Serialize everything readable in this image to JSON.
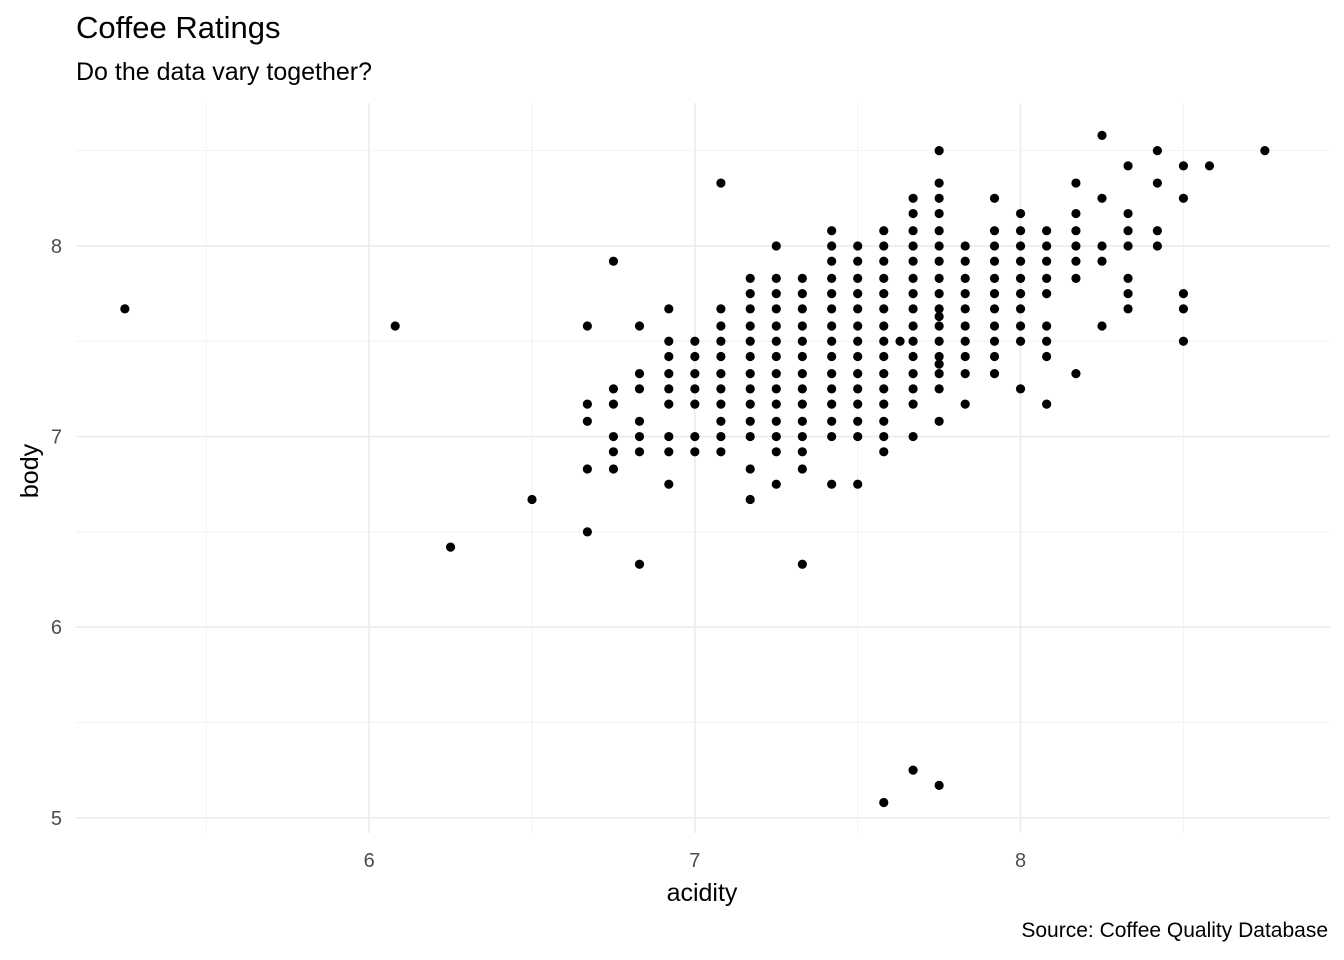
{
  "chart_data": {
    "type": "scatter",
    "title": "Coffee Ratings",
    "subtitle": "Do the data vary together?",
    "caption": "Source: Coffee Quality Database",
    "xlabel": "acidity",
    "ylabel": "body",
    "xlim": [
      5.1,
      8.95
    ],
    "ylim": [
      4.92,
      8.75
    ],
    "x_ticks": [
      6,
      7,
      8
    ],
    "y_ticks": [
      5,
      6,
      7,
      8
    ],
    "x_minor": [
      5.5,
      6.5,
      7.5,
      8.5
    ],
    "y_minor": [
      5.5,
      6.5,
      7.5,
      8.5
    ],
    "grid": true,
    "point_color": "#000000",
    "background": "#ffffff",
    "points": [
      [
        5.25,
        7.67
      ],
      [
        6.08,
        7.58
      ],
      [
        6.25,
        6.42
      ],
      [
        6.5,
        6.67
      ],
      [
        6.67,
        7.58
      ],
      [
        6.67,
        7.17
      ],
      [
        6.67,
        7.08
      ],
      [
        6.67,
        6.83
      ],
      [
        6.67,
        6.5
      ],
      [
        6.75,
        7.92
      ],
      [
        6.75,
        7.25
      ],
      [
        6.75,
        7.17
      ],
      [
        6.75,
        7.0
      ],
      [
        6.75,
        6.92
      ],
      [
        6.75,
        6.83
      ],
      [
        6.83,
        7.58
      ],
      [
        6.83,
        7.33
      ],
      [
        6.83,
        7.25
      ],
      [
        6.83,
        7.08
      ],
      [
        6.83,
        7.0
      ],
      [
        6.83,
        6.92
      ],
      [
        6.83,
        6.33
      ],
      [
        6.92,
        7.67
      ],
      [
        6.92,
        7.5
      ],
      [
        6.92,
        7.42
      ],
      [
        6.92,
        7.33
      ],
      [
        6.92,
        7.25
      ],
      [
        6.92,
        7.17
      ],
      [
        6.92,
        7.0
      ],
      [
        6.92,
        6.92
      ],
      [
        6.92,
        6.75
      ],
      [
        7.0,
        7.5
      ],
      [
        7.0,
        7.42
      ],
      [
        7.0,
        7.33
      ],
      [
        7.0,
        7.25
      ],
      [
        7.0,
        7.17
      ],
      [
        7.0,
        7.0
      ],
      [
        7.0,
        6.92
      ],
      [
        7.08,
        8.33
      ],
      [
        7.08,
        7.67
      ],
      [
        7.08,
        7.58
      ],
      [
        7.08,
        7.5
      ],
      [
        7.08,
        7.42
      ],
      [
        7.08,
        7.33
      ],
      [
        7.08,
        7.25
      ],
      [
        7.08,
        7.17
      ],
      [
        7.08,
        7.08
      ],
      [
        7.08,
        7.0
      ],
      [
        7.08,
        6.92
      ],
      [
        7.17,
        7.83
      ],
      [
        7.17,
        7.75
      ],
      [
        7.17,
        7.67
      ],
      [
        7.17,
        7.58
      ],
      [
        7.17,
        7.5
      ],
      [
        7.17,
        7.42
      ],
      [
        7.17,
        7.33
      ],
      [
        7.17,
        7.25
      ],
      [
        7.17,
        7.17
      ],
      [
        7.17,
        7.08
      ],
      [
        7.17,
        7.0
      ],
      [
        7.17,
        6.83
      ],
      [
        7.17,
        6.67
      ],
      [
        7.25,
        8.0
      ],
      [
        7.25,
        7.83
      ],
      [
        7.25,
        7.75
      ],
      [
        7.25,
        7.67
      ],
      [
        7.25,
        7.58
      ],
      [
        7.25,
        7.5
      ],
      [
        7.25,
        7.42
      ],
      [
        7.25,
        7.33
      ],
      [
        7.25,
        7.25
      ],
      [
        7.25,
        7.17
      ],
      [
        7.25,
        7.08
      ],
      [
        7.25,
        7.0
      ],
      [
        7.25,
        6.92
      ],
      [
        7.25,
        6.75
      ],
      [
        7.33,
        7.83
      ],
      [
        7.33,
        7.75
      ],
      [
        7.33,
        7.67
      ],
      [
        7.33,
        7.58
      ],
      [
        7.33,
        7.5
      ],
      [
        7.33,
        7.42
      ],
      [
        7.33,
        7.33
      ],
      [
        7.33,
        7.25
      ],
      [
        7.33,
        7.17
      ],
      [
        7.33,
        7.08
      ],
      [
        7.33,
        7.0
      ],
      [
        7.33,
        6.92
      ],
      [
        7.33,
        6.83
      ],
      [
        7.33,
        6.33
      ],
      [
        7.42,
        8.08
      ],
      [
        7.42,
        8.0
      ],
      [
        7.42,
        7.92
      ],
      [
        7.42,
        7.83
      ],
      [
        7.42,
        7.75
      ],
      [
        7.42,
        7.67
      ],
      [
        7.42,
        7.58
      ],
      [
        7.42,
        7.5
      ],
      [
        7.42,
        7.42
      ],
      [
        7.42,
        7.33
      ],
      [
        7.42,
        7.25
      ],
      [
        7.42,
        7.17
      ],
      [
        7.42,
        7.08
      ],
      [
        7.42,
        7.0
      ],
      [
        7.42,
        6.75
      ],
      [
        7.5,
        8.0
      ],
      [
        7.5,
        7.92
      ],
      [
        7.5,
        7.83
      ],
      [
        7.5,
        7.75
      ],
      [
        7.5,
        7.67
      ],
      [
        7.5,
        7.58
      ],
      [
        7.5,
        7.5
      ],
      [
        7.5,
        7.42
      ],
      [
        7.5,
        7.33
      ],
      [
        7.5,
        7.25
      ],
      [
        7.5,
        7.17
      ],
      [
        7.5,
        7.08
      ],
      [
        7.5,
        7.0
      ],
      [
        7.5,
        6.75
      ],
      [
        7.58,
        8.08
      ],
      [
        7.58,
        8.0
      ],
      [
        7.58,
        7.92
      ],
      [
        7.58,
        7.83
      ],
      [
        7.58,
        7.75
      ],
      [
        7.58,
        7.67
      ],
      [
        7.58,
        7.58
      ],
      [
        7.58,
        7.5
      ],
      [
        7.58,
        7.42
      ],
      [
        7.58,
        7.33
      ],
      [
        7.58,
        7.25
      ],
      [
        7.58,
        7.17
      ],
      [
        7.58,
        7.08
      ],
      [
        7.58,
        7.0
      ],
      [
        7.58,
        6.92
      ],
      [
        7.58,
        5.08
      ],
      [
        7.63,
        7.5
      ],
      [
        7.67,
        8.25
      ],
      [
        7.67,
        8.17
      ],
      [
        7.67,
        8.08
      ],
      [
        7.67,
        8.0
      ],
      [
        7.67,
        7.92
      ],
      [
        7.67,
        7.83
      ],
      [
        7.67,
        7.75
      ],
      [
        7.67,
        7.67
      ],
      [
        7.67,
        7.58
      ],
      [
        7.67,
        7.5
      ],
      [
        7.67,
        7.42
      ],
      [
        7.67,
        7.33
      ],
      [
        7.67,
        7.25
      ],
      [
        7.67,
        7.17
      ],
      [
        7.67,
        7.0
      ],
      [
        7.67,
        5.25
      ],
      [
        7.75,
        8.5
      ],
      [
        7.75,
        8.33
      ],
      [
        7.75,
        8.25
      ],
      [
        7.75,
        8.17
      ],
      [
        7.75,
        8.08
      ],
      [
        7.75,
        8.0
      ],
      [
        7.75,
        7.92
      ],
      [
        7.75,
        7.83
      ],
      [
        7.75,
        7.75
      ],
      [
        7.75,
        7.67
      ],
      [
        7.75,
        7.63
      ],
      [
        7.75,
        7.58
      ],
      [
        7.75,
        7.5
      ],
      [
        7.75,
        7.42
      ],
      [
        7.75,
        7.38
      ],
      [
        7.75,
        7.33
      ],
      [
        7.75,
        7.25
      ],
      [
        7.75,
        7.08
      ],
      [
        7.75,
        5.17
      ],
      [
        7.83,
        8.0
      ],
      [
        7.83,
        7.92
      ],
      [
        7.83,
        7.83
      ],
      [
        7.83,
        7.75
      ],
      [
        7.83,
        7.67
      ],
      [
        7.83,
        7.58
      ],
      [
        7.83,
        7.5
      ],
      [
        7.83,
        7.42
      ],
      [
        7.83,
        7.33
      ],
      [
        7.83,
        7.17
      ],
      [
        7.92,
        8.25
      ],
      [
        7.92,
        8.08
      ],
      [
        7.92,
        8.0
      ],
      [
        7.92,
        7.92
      ],
      [
        7.92,
        7.83
      ],
      [
        7.92,
        7.75
      ],
      [
        7.92,
        7.67
      ],
      [
        7.92,
        7.58
      ],
      [
        7.92,
        7.5
      ],
      [
        7.92,
        7.42
      ],
      [
        7.92,
        7.33
      ],
      [
        8.0,
        8.17
      ],
      [
        8.0,
        8.08
      ],
      [
        8.0,
        8.0
      ],
      [
        8.0,
        7.92
      ],
      [
        8.0,
        7.83
      ],
      [
        8.0,
        7.75
      ],
      [
        8.0,
        7.67
      ],
      [
        8.0,
        7.58
      ],
      [
        8.0,
        7.5
      ],
      [
        8.0,
        7.25
      ],
      [
        8.08,
        8.08
      ],
      [
        8.08,
        8.0
      ],
      [
        8.08,
        7.92
      ],
      [
        8.08,
        7.83
      ],
      [
        8.08,
        7.75
      ],
      [
        8.08,
        7.58
      ],
      [
        8.08,
        7.5
      ],
      [
        8.08,
        7.42
      ],
      [
        8.08,
        7.17
      ],
      [
        8.17,
        8.33
      ],
      [
        8.17,
        8.17
      ],
      [
        8.17,
        8.08
      ],
      [
        8.17,
        8.0
      ],
      [
        8.17,
        7.92
      ],
      [
        8.17,
        7.83
      ],
      [
        8.17,
        7.33
      ],
      [
        8.25,
        8.58
      ],
      [
        8.25,
        8.25
      ],
      [
        8.25,
        8.0
      ],
      [
        8.25,
        7.92
      ],
      [
        8.25,
        7.58
      ],
      [
        8.33,
        8.42
      ],
      [
        8.33,
        8.17
      ],
      [
        8.33,
        8.08
      ],
      [
        8.33,
        8.0
      ],
      [
        8.33,
        7.83
      ],
      [
        8.33,
        7.75
      ],
      [
        8.33,
        7.67
      ],
      [
        8.42,
        8.5
      ],
      [
        8.42,
        8.33
      ],
      [
        8.42,
        8.08
      ],
      [
        8.42,
        8.0
      ],
      [
        8.5,
        8.42
      ],
      [
        8.5,
        8.25
      ],
      [
        8.5,
        7.75
      ],
      [
        8.5,
        7.67
      ],
      [
        8.5,
        7.5
      ],
      [
        8.58,
        8.42
      ],
      [
        8.75,
        8.5
      ]
    ]
  }
}
